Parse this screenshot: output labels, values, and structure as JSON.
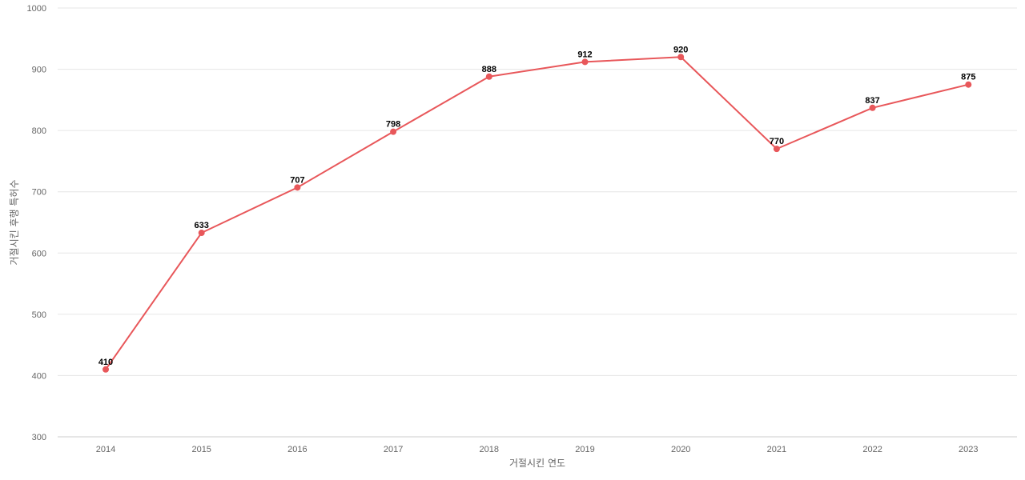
{
  "chart_data": {
    "type": "line",
    "xlabel": "거절시킨 연도",
    "ylabel": "거절시킨 후행 특허수",
    "categories": [
      "2014",
      "2015",
      "2016",
      "2017",
      "2018",
      "2019",
      "2020",
      "2021",
      "2022",
      "2023"
    ],
    "series": [
      {
        "values": [
          410,
          633,
          707,
          798,
          888,
          912,
          920,
          770,
          837,
          875
        ]
      }
    ],
    "ylim": [
      300,
      1000
    ],
    "yticks": [
      300,
      400,
      500,
      600,
      700,
      800,
      900,
      1000
    ],
    "grid": true,
    "data_labels": true,
    "color": "#e8575a"
  }
}
